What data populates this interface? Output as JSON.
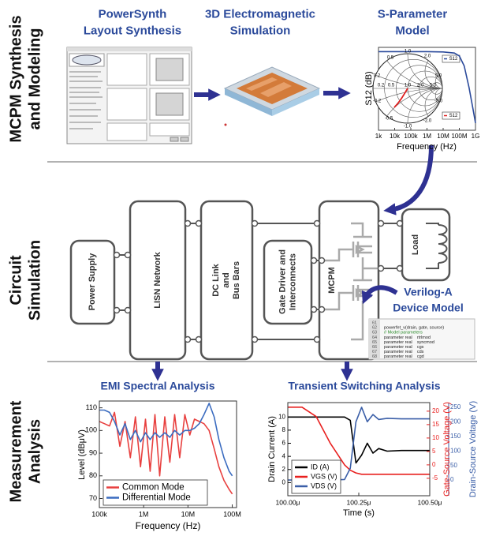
{
  "sections": [
    {
      "lines": [
        "MCPM Synthesis",
        "and Modeling"
      ]
    },
    {
      "lines": [
        "Circuit",
        "Simulation"
      ]
    },
    {
      "lines": [
        "Measurement",
        "Analysis"
      ]
    }
  ],
  "stages": [
    {
      "lines": [
        "PowerSynth",
        "Layout Synthesis"
      ]
    },
    {
      "lines": [
        "3D Electromagnetic",
        "Simulation"
      ]
    },
    {
      "lines": [
        "S-Parameter",
        "Model"
      ]
    }
  ],
  "sparam_chart": {
    "type": "line",
    "y_label": "S12 (dB)",
    "x_label": "Frequency (Hz)",
    "x": [
      1000,
      10000,
      100000,
      1000000,
      10000000,
      50000000,
      100000000,
      200000000,
      400000000,
      700000000,
      1000000000
    ],
    "values": [
      0,
      0,
      0,
      0,
      -0.2,
      -1,
      -3,
      -10,
      -25,
      -40,
      -50
    ],
    "color": "#2b4a9b",
    "log_x": true,
    "xlim": [
      1000,
      1000000000
    ],
    "ylim": [
      -55,
      3
    ],
    "xticks": [
      {
        "value": 1000,
        "label": "1k"
      },
      {
        "value": 10000,
        "label": "10k"
      },
      {
        "value": 100000,
        "label": "100k"
      },
      {
        "value": 1000000,
        "label": "1M"
      },
      {
        "value": 10000000,
        "label": "10M"
      },
      {
        "value": 100000000,
        "label": "100M"
      },
      {
        "value": 1000000000,
        "label": "1G"
      }
    ],
    "smith_labels": [
      "0.5",
      "1.0",
      "2.0",
      "0.2",
      "5.0",
      "-0.2",
      "-0.5",
      "-1.0",
      "-2.0",
      "-5.0",
      "0.2",
      "0.5",
      "1.0",
      "2.0",
      "5.0"
    ],
    "smith_legend": [
      "S12",
      "S12"
    ]
  },
  "circuit": {
    "blocks": [
      {
        "lines": [
          "Power Supply"
        ]
      },
      {
        "lines": [
          "LISN Network"
        ]
      },
      {
        "lines": [
          "DC Link",
          "and",
          "Bus Bars"
        ]
      },
      {
        "lines": [
          "Gate Driver and",
          "Interconnects"
        ]
      },
      {
        "lines": [
          "MCPM"
        ]
      },
      {
        "lines": [
          "Load"
        ]
      }
    ]
  },
  "verilog": {
    "title": [
      "Verilog-A",
      "Device Model"
    ],
    "line_numbers": [
      "61",
      "62",
      "63",
      "64",
      "65",
      "66",
      "67",
      "68"
    ],
    "code": [
      "powerfet_v(drain, gate, source)",
      "// Model parameters",
      "parameter real    rtrlmod",
      "parameter real    syncmod",
      "parameter real    cgs",
      "parameter real    cds",
      "parameter real    cgd"
    ]
  },
  "emi_chart": {
    "type": "line",
    "title": "EMI Spectral Analysis",
    "y_label": "Level (dBμV)",
    "x_label": "Frequency (Hz)",
    "log_x": true,
    "x": [
      100000,
      130000,
      170000,
      220000,
      290000,
      380000,
      500000,
      650000,
      850000,
      1100000,
      1400000,
      1800000,
      2300000,
      3000000,
      3900000,
      5000000,
      6500000,
      8500000,
      11000000,
      14000000,
      18000000,
      23000000,
      30000000,
      39000000,
      50000000,
      65000000,
      85000000,
      100000000
    ],
    "series": [
      {
        "name": "Common Mode",
        "color": "#e8403f",
        "values": [
          104,
          103,
          102,
          108,
          93,
          104,
          88,
          106,
          84,
          105,
          82,
          107,
          80,
          106,
          86,
          107,
          88,
          107,
          98,
          105,
          104,
          103,
          100,
          92,
          84,
          78,
          74,
          72
        ]
      },
      {
        "name": "Differential Mode",
        "color": "#3b6cc0",
        "values": [
          109,
          109,
          108,
          104,
          98,
          103,
          96,
          100,
          95,
          99,
          96,
          99,
          97,
          99,
          97,
          100,
          98,
          100,
          100,
          101,
          103,
          107,
          112,
          106,
          96,
          88,
          82,
          80
        ]
      }
    ],
    "xlim": [
      100000,
      125000000
    ],
    "ylim": [
      66,
      113
    ],
    "xticks": [
      {
        "value": 100000,
        "label": "100k"
      },
      {
        "value": 1000000,
        "label": "1M"
      },
      {
        "value": 10000000,
        "label": "10M"
      },
      {
        "value": 100000000,
        "label": "100M"
      }
    ],
    "yticks": [
      70,
      80,
      90,
      100,
      110
    ],
    "legend": "lower left"
  },
  "transient_chart": {
    "type": "line",
    "title": "Transient Switching Analysis",
    "y_label": "Drain Current (A)",
    "y2_label": "Gate-Source Voltage (V)",
    "y3_label": "Drain-Source Voltage (V)",
    "x_label": "Time (s)",
    "x": [
      100.0,
      100.05,
      100.1,
      100.15,
      100.2,
      100.22,
      100.24,
      100.26,
      100.28,
      100.3,
      100.32,
      100.35,
      100.4,
      100.45,
      100.5
    ],
    "series": [
      {
        "name": "ID (A)",
        "color": "#000000",
        "values": [
          10,
          10,
          10,
          10,
          10,
          9.5,
          3,
          4.2,
          6,
          4.5,
          5.2,
          4.8,
          4.9,
          4.9,
          4.9
        ]
      },
      {
        "name": "VGS (V)",
        "color": "#e8201f",
        "axis": "y2",
        "values": [
          21.5,
          21.5,
          18,
          8,
          0,
          -2,
          -3,
          -3.5,
          -3.5,
          -3.5,
          -3.5,
          -3.5,
          -3.5,
          -3.5,
          -3.5
        ]
      },
      {
        "name": "VDS (V)",
        "color": "#3b5fa8",
        "axis": "y3",
        "values": [
          0,
          0,
          0,
          0,
          2,
          40,
          200,
          250,
          200,
          225,
          208,
          212,
          210,
          210,
          210
        ]
      }
    ],
    "xlim": [
      100.0,
      100.5
    ],
    "xticks": [
      {
        "value": 100.0,
        "label": "100.00μ"
      },
      {
        "value": 100.25,
        "label": "100.25μ"
      },
      {
        "value": 100.5,
        "label": "100.50μ"
      }
    ],
    "ylim": [
      -2,
      12.2
    ],
    "yticks": [
      0,
      2,
      4,
      6,
      8,
      10
    ],
    "y2lim": [
      -11.5,
      23.2
    ],
    "y2ticks": [
      -5,
      0,
      5,
      10,
      15,
      20
    ],
    "y3lim": [
      -54,
      266
    ],
    "y3ticks": [
      0,
      50,
      100,
      150,
      200,
      250
    ],
    "legend": "lower left"
  }
}
